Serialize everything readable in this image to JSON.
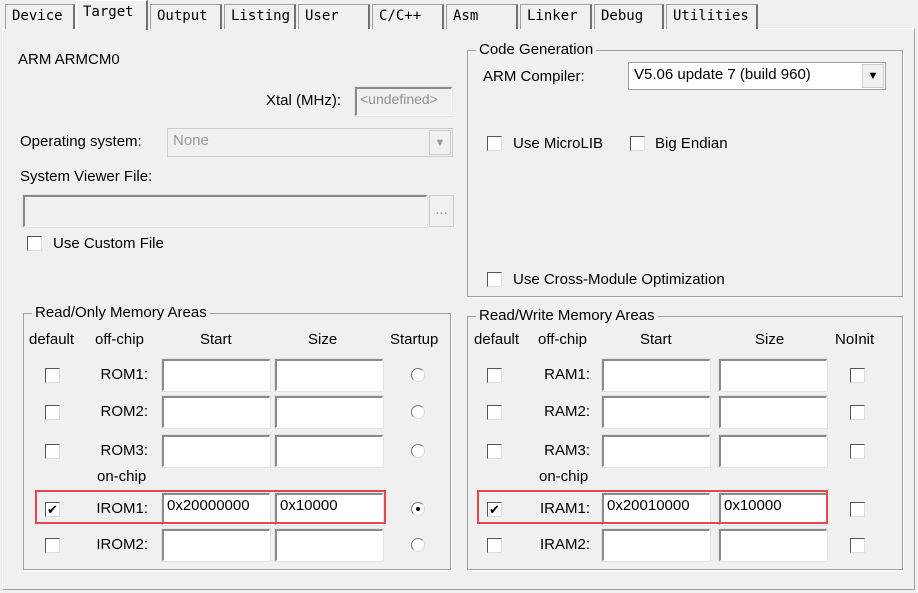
{
  "tabs": [
    "Device",
    "Target",
    "Output",
    "Listing",
    "User",
    "C/C++",
    "Asm",
    "Linker",
    "Debug",
    "Utilities"
  ],
  "selected_tab": "Target",
  "device_name": "ARM ARMCM0",
  "xtal": {
    "label": "Xtal (MHz):",
    "value": "<undefined>"
  },
  "os": {
    "label": "Operating system:",
    "value": "None"
  },
  "svf": {
    "label": "System Viewer File:",
    "value": "",
    "browse": "..."
  },
  "custom_file": {
    "label": "Use Custom File",
    "checked": false
  },
  "codegen": {
    "title": "Code Generation",
    "compiler_label": "ARM Compiler:",
    "compiler_value": "V5.06 update 7 (build 960)",
    "microlib": "Use MicroLIB",
    "big_endian": "Big Endian",
    "cross_module": "Use Cross-Module Optimization"
  },
  "rom": {
    "title": "Read/Only Memory Areas",
    "headers": [
      "default",
      "off-chip",
      "Start",
      "Size",
      "Startup"
    ],
    "onchip_label": "on-chip",
    "rows": [
      {
        "label": "ROM1:",
        "start": "",
        "size": "",
        "default": false,
        "startup": false
      },
      {
        "label": "ROM2:",
        "start": "",
        "size": "",
        "default": false,
        "startup": false
      },
      {
        "label": "ROM3:",
        "start": "",
        "size": "",
        "default": false,
        "startup": false
      },
      {
        "label": "IROM1:",
        "start": "0x20000000",
        "size": "0x10000",
        "default": true,
        "startup": true
      },
      {
        "label": "IROM2:",
        "start": "",
        "size": "",
        "default": false,
        "startup": false
      }
    ]
  },
  "ram": {
    "title": "Read/Write Memory Areas",
    "headers": [
      "default",
      "off-chip",
      "Start",
      "Size",
      "NoInit"
    ],
    "onchip_label": "on-chip",
    "rows": [
      {
        "label": "RAM1:",
        "start": "",
        "size": "",
        "default": false,
        "noinit": false
      },
      {
        "label": "RAM2:",
        "start": "",
        "size": "",
        "default": false,
        "noinit": false
      },
      {
        "label": "RAM3:",
        "start": "",
        "size": "",
        "default": false,
        "noinit": false
      },
      {
        "label": "IRAM1:",
        "start": "0x20010000",
        "size": "0x10000",
        "default": true,
        "noinit": false
      },
      {
        "label": "IRAM2:",
        "start": "",
        "size": "",
        "default": false,
        "noinit": false
      }
    ]
  },
  "highlight_color": "#e8474a"
}
